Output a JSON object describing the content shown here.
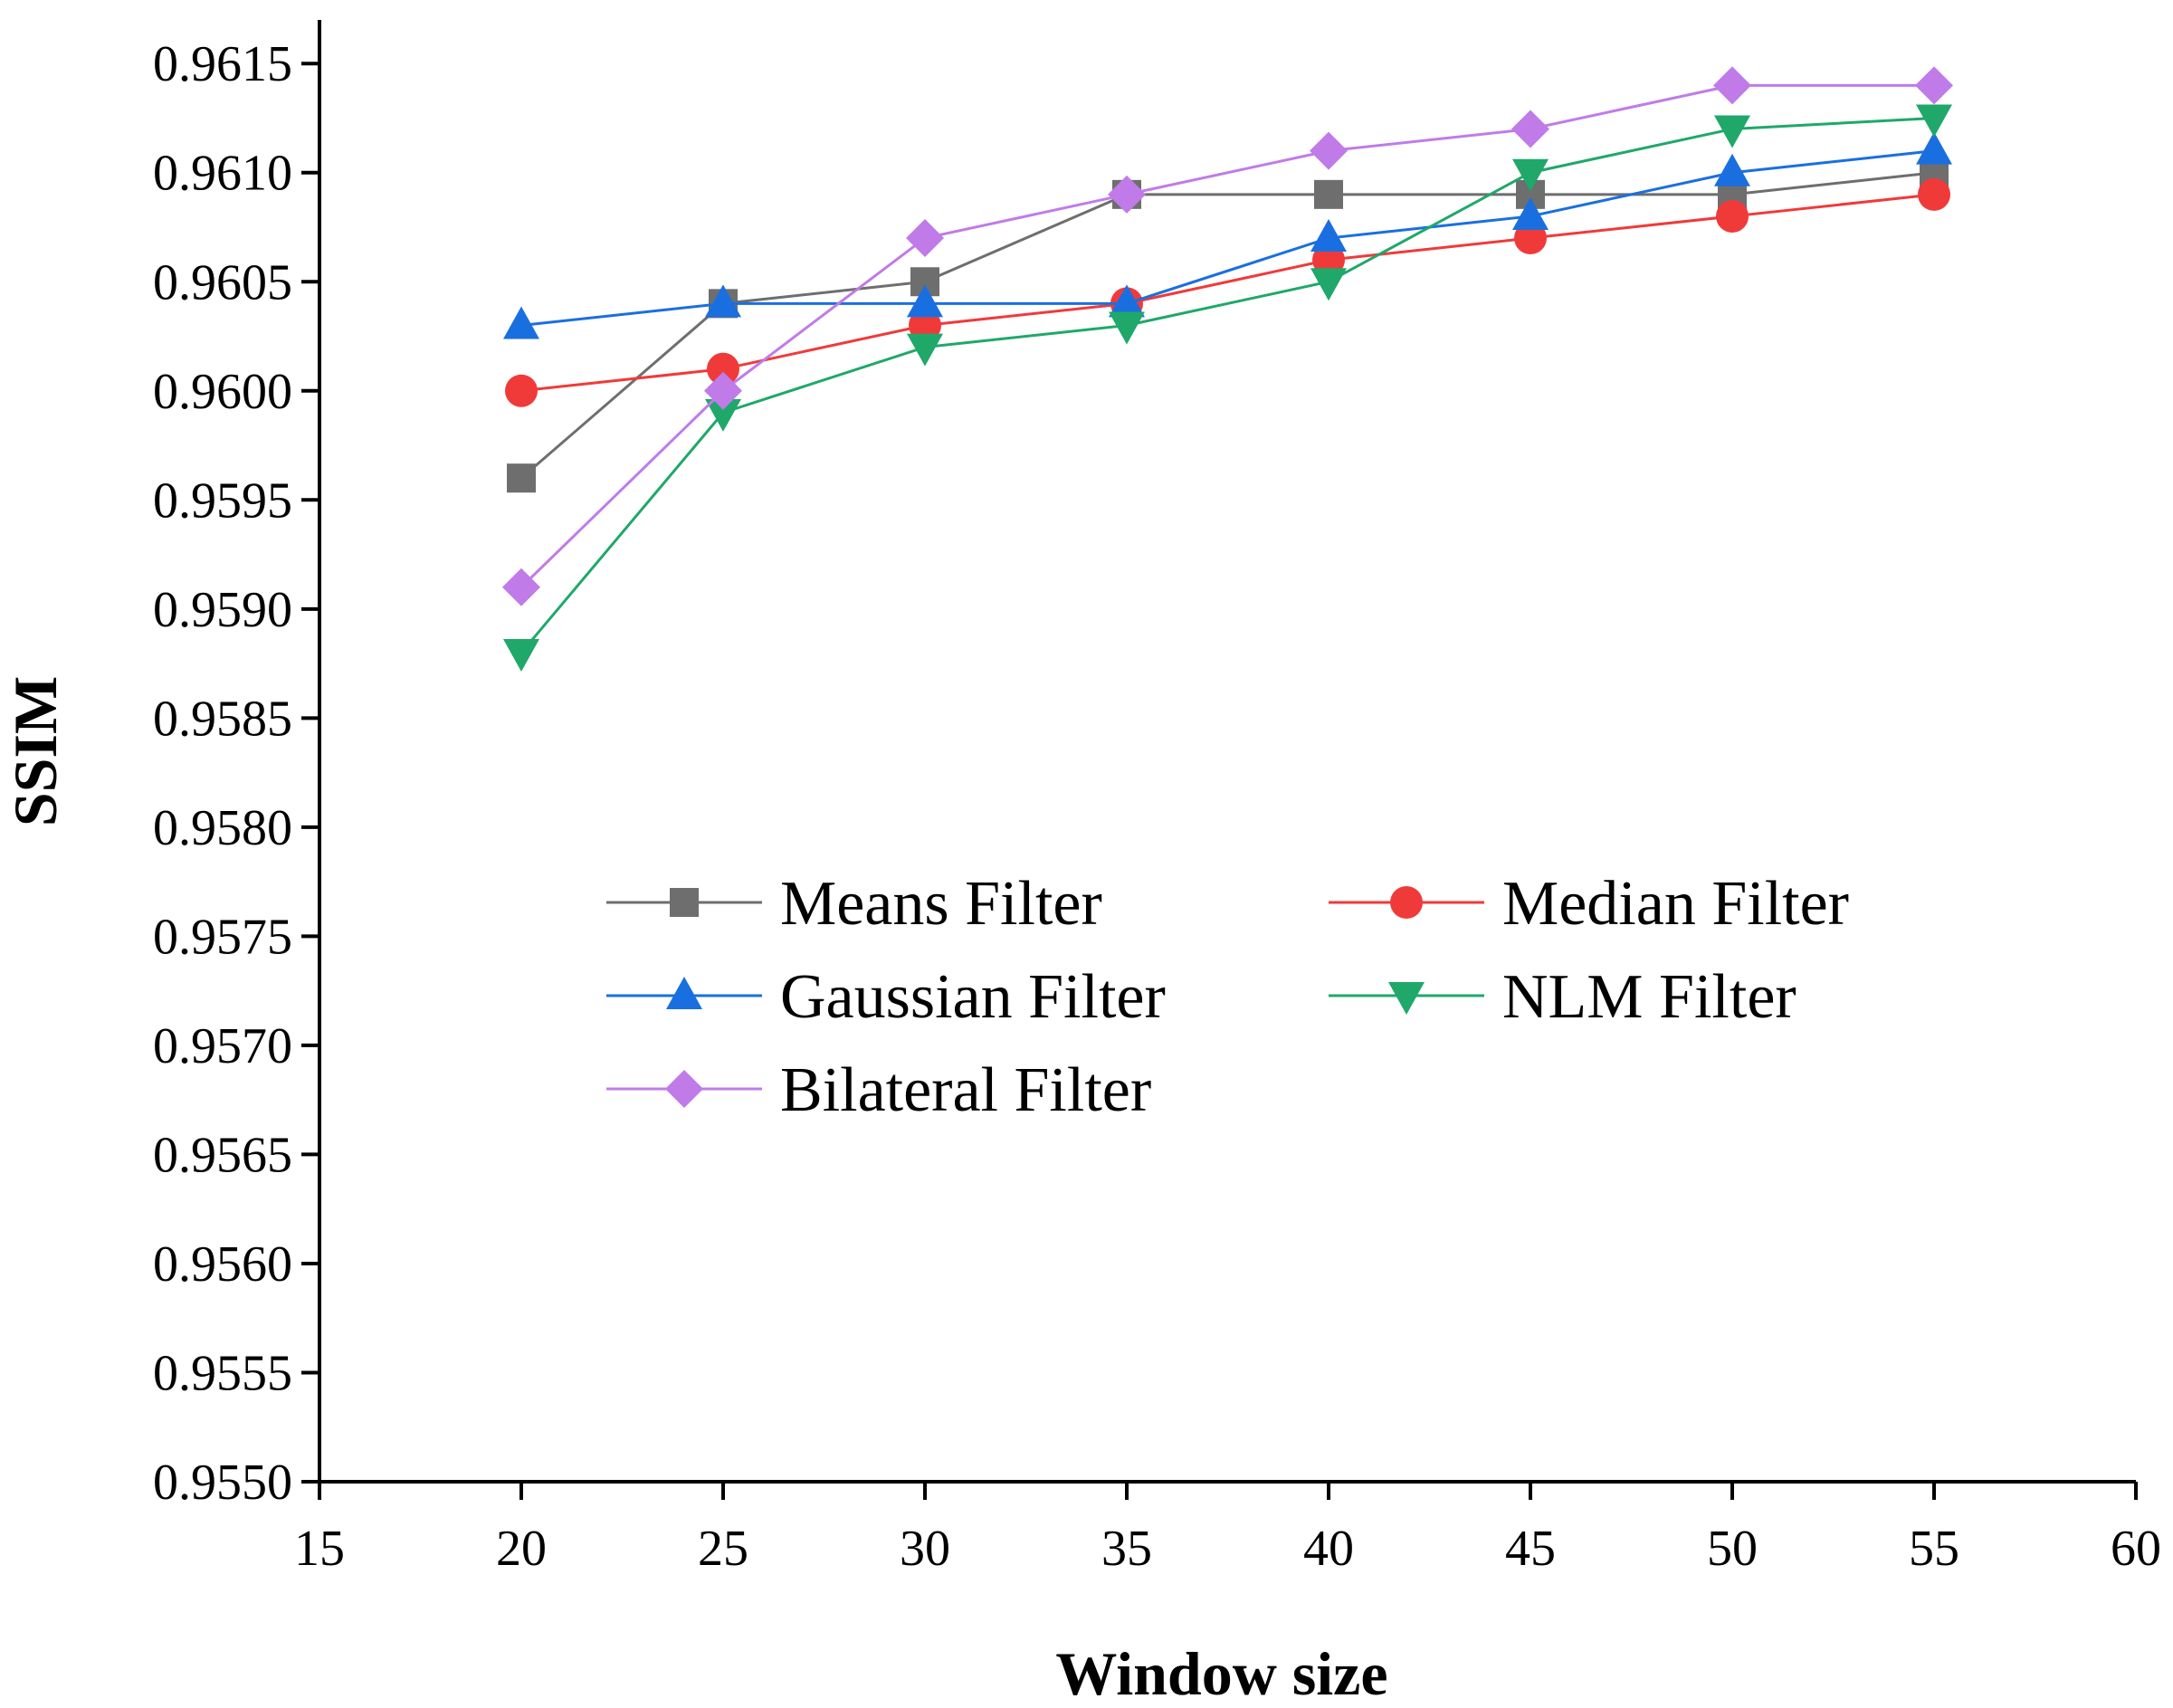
{
  "chart_data": {
    "type": "line",
    "title": "",
    "xlabel": "Window size",
    "ylabel": "SSIM",
    "xlim": [
      15,
      60
    ],
    "ylim": [
      0.955,
      0.9617
    ],
    "xticks": [
      15,
      20,
      25,
      30,
      35,
      40,
      45,
      50,
      55,
      60
    ],
    "yticks": [
      0.955,
      0.9555,
      0.956,
      0.9565,
      0.957,
      0.9575,
      0.958,
      0.9585,
      0.959,
      0.9595,
      0.96,
      0.9605,
      0.961,
      0.9615
    ],
    "ytick_labels": [
      "0.9550",
      "0.9555",
      "0.9560",
      "0.9565",
      "0.9570",
      "0.9575",
      "0.9580",
      "0.9585",
      "0.9590",
      "0.9595",
      "0.9600",
      "0.9605",
      "0.9610",
      "0.9615"
    ],
    "grid": false,
    "legend_position": "center",
    "x": [
      20,
      25,
      30,
      35,
      40,
      45,
      50,
      55
    ],
    "series": [
      {
        "name": "Means Filter",
        "color": "#6e6e6e",
        "marker": "square",
        "values": [
          0.9596,
          0.9604,
          0.9605,
          0.9609,
          0.9609,
          0.9609,
          0.9609,
          0.961
        ]
      },
      {
        "name": "Median Filter",
        "color": "#f03a3a",
        "marker": "circle",
        "values": [
          0.96,
          0.9601,
          0.9603,
          0.9604,
          0.9606,
          0.9607,
          0.9608,
          0.9609
        ]
      },
      {
        "name": "Gaussian Filter",
        "color": "#1a6fe0",
        "marker": "triangle-up",
        "values": [
          0.9603,
          0.9604,
          0.9604,
          0.9604,
          0.9607,
          0.9608,
          0.961,
          0.9611
        ]
      },
      {
        "name": "NLM Filter",
        "color": "#1fa86a",
        "marker": "triangle-down",
        "values": [
          0.9588,
          0.9599,
          0.9602,
          0.9603,
          0.9605,
          0.961,
          0.9612,
          0.96125
        ]
      },
      {
        "name": "Bilateral Filter",
        "color": "#c07be8",
        "marker": "diamond",
        "values": [
          0.9591,
          0.96,
          0.9607,
          0.9609,
          0.9611,
          0.9612,
          0.9614,
          0.9614
        ]
      }
    ]
  }
}
